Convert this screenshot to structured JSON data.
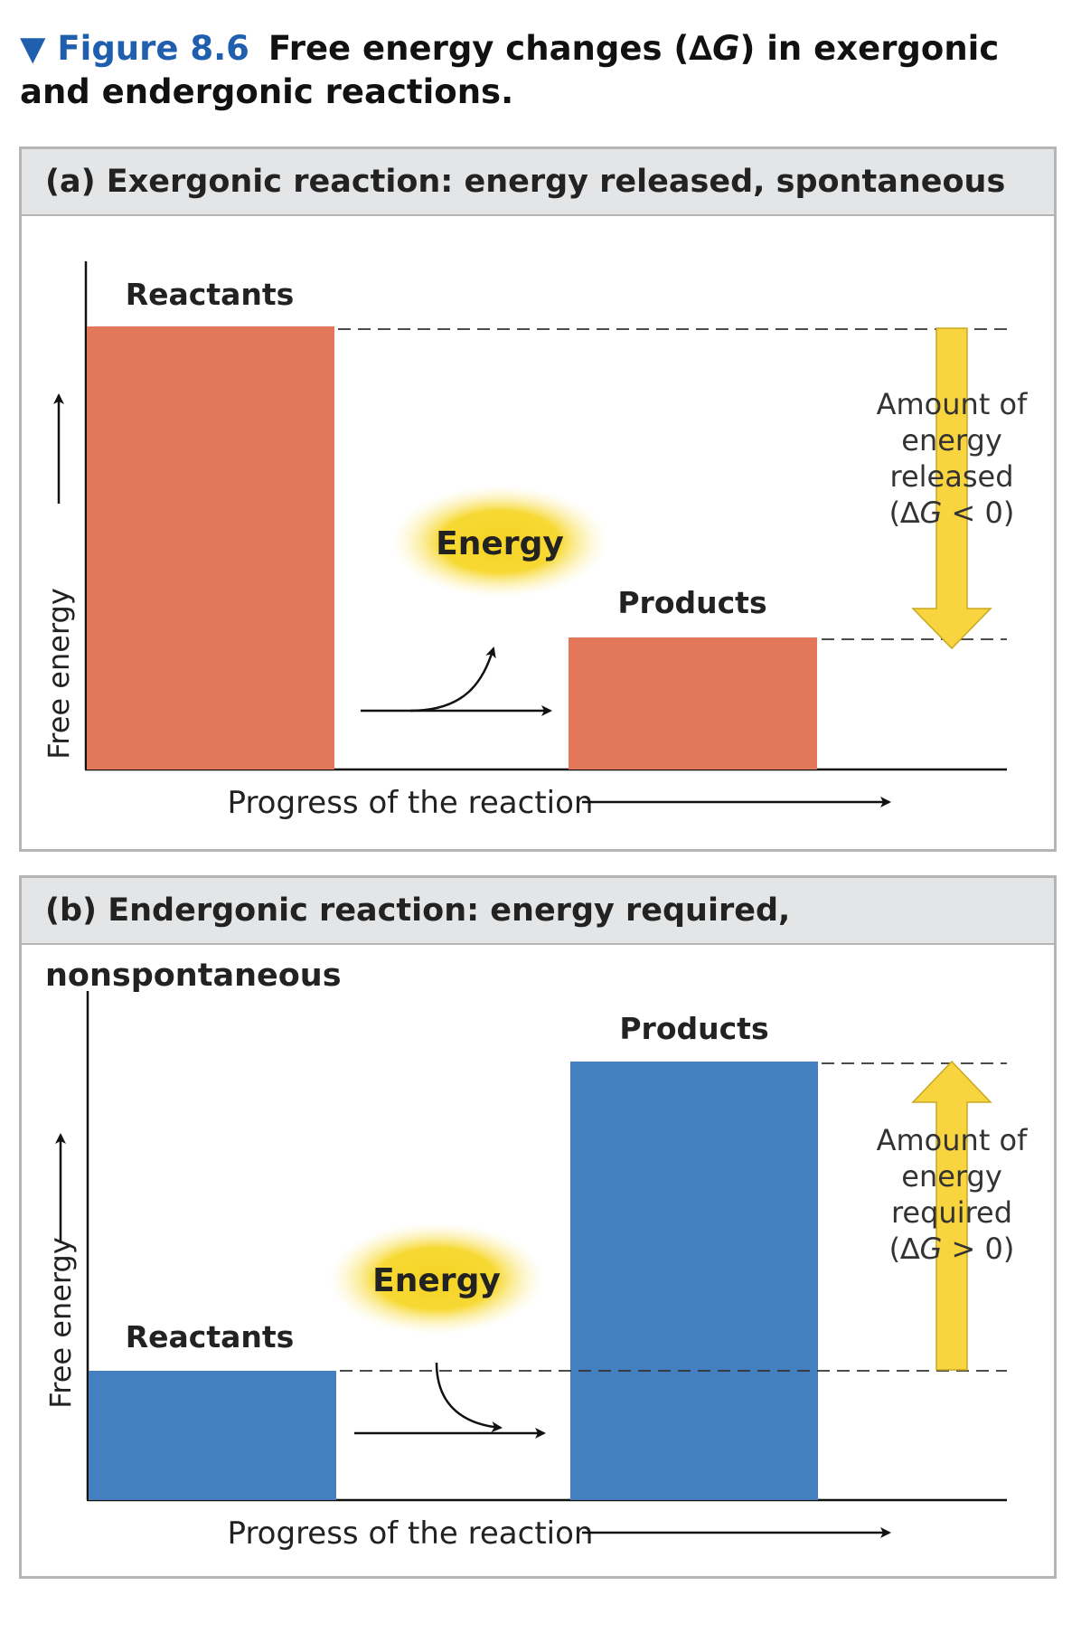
{
  "caption": {
    "marker": "▼",
    "figure_number": "Figure 8.6",
    "title_before": "Free energy changes (",
    "delta": "∆",
    "g": "G",
    "title_after": ") in exergonic and endergonic reactions."
  },
  "panel_a": {
    "header": "(a) Exergonic reaction: energy released, spontaneous",
    "y_axis_label": "Free energy",
    "x_axis_label": "Progress of the reaction",
    "reactants_label": "Reactants",
    "products_label": "Products",
    "energy_label": "Energy",
    "amount_line1": "Amount of",
    "amount_line2": "energy",
    "amount_line3": "released",
    "dg_open": "(∆",
    "dg_g": "G",
    "dg_close": " < 0)"
  },
  "panel_b": {
    "header": "(b) Endergonic reaction: energy required, nonspontaneous",
    "y_axis_label": "Free energy",
    "x_axis_label": "Progress of the reaction",
    "reactants_label": "Reactants",
    "products_label": "Products",
    "energy_label": "Energy",
    "amount_line1": "Amount of",
    "amount_line2": "energy",
    "amount_line3": "required",
    "dg_open": "(∆",
    "dg_g": "G",
    "dg_close": " > 0)"
  },
  "colors": {
    "exergonic_bar": "#e2775a",
    "endergonic_bar": "#4480c0",
    "energy_arrow": "#f8d43f",
    "energy_glow": "#f6d324",
    "caption_accent": "#1f5fae"
  }
}
